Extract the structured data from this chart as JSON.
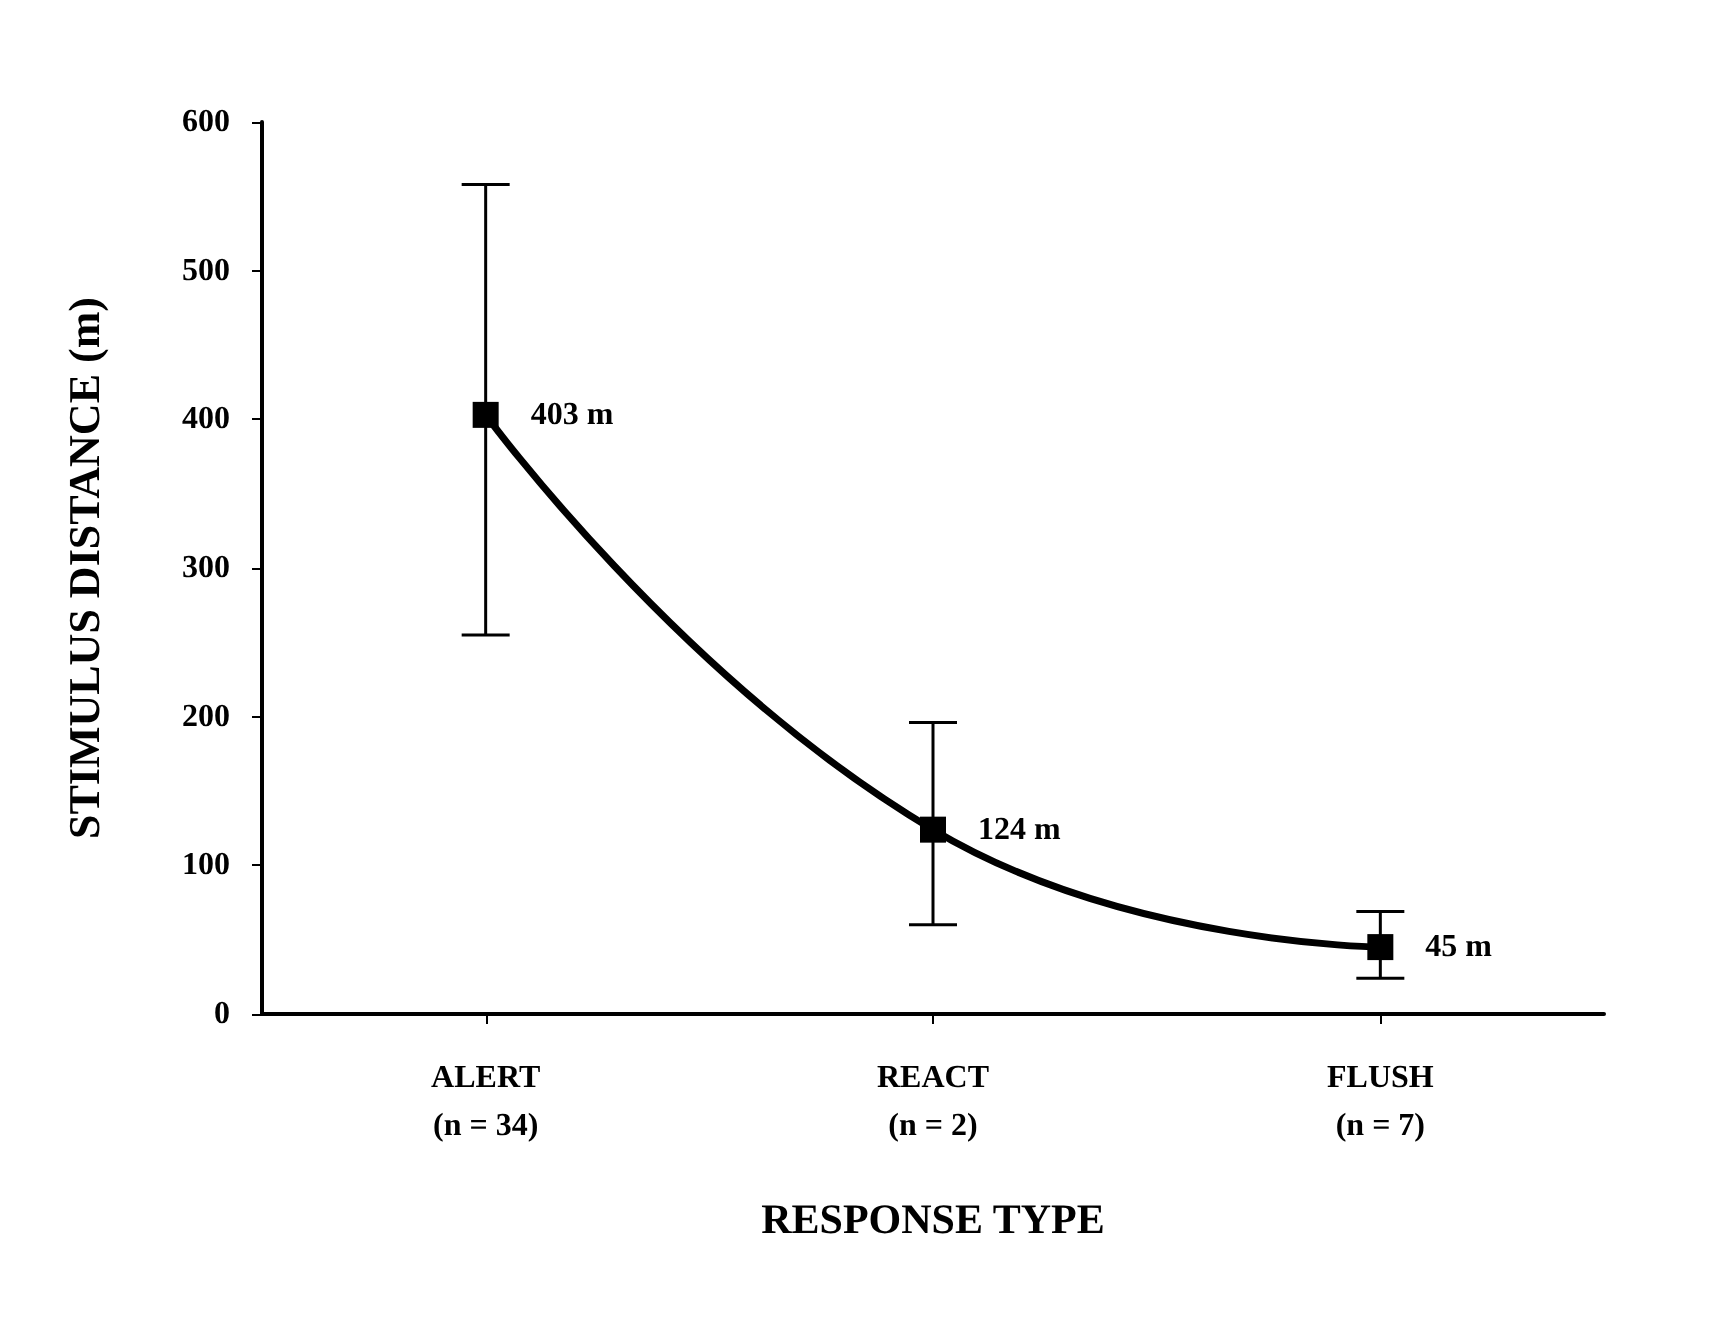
{
  "chart_data": {
    "type": "line",
    "categories": [
      "ALERT\n(n = 34)",
      "REACT\n(n = 2)",
      "FLUSH\n(n = 7)"
    ],
    "values": [
      403,
      124,
      45
    ],
    "value_labels": [
      "403 m",
      "124 m",
      "45 m"
    ],
    "errors": [
      [
        255,
        558
      ],
      [
        60,
        196
      ],
      [
        24,
        69
      ]
    ],
    "color": "#000000",
    "marker": "square",
    "line_style": "solid",
    "xlabel": "RESPONSE TYPE",
    "ylabel": "STIMULUS DISTANCE (m)",
    "ylim": [
      0,
      600
    ],
    "yticks": [
      0,
      100,
      200,
      300,
      400,
      500,
      600
    ]
  }
}
